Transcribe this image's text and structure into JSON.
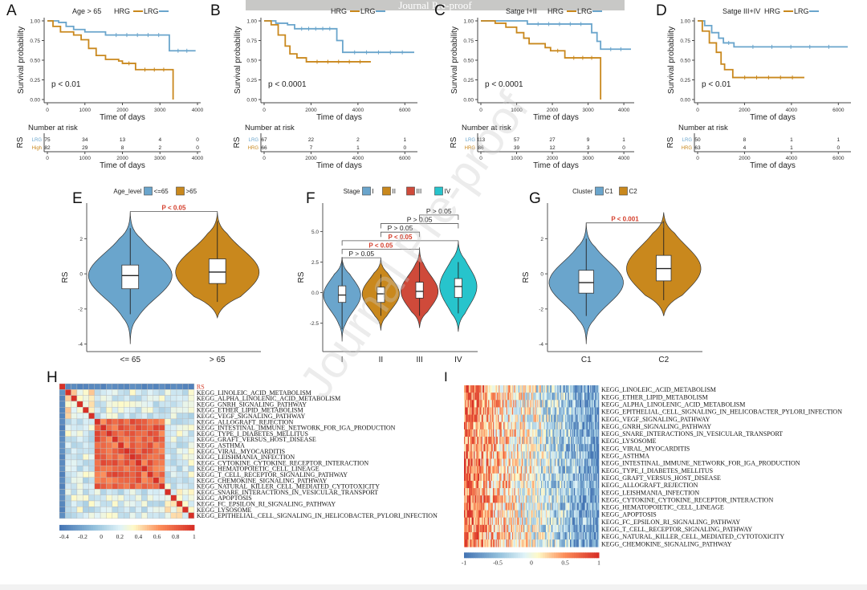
{
  "banner": "Journal Pre-proof",
  "watermark": "Journal Pre-proof",
  "colors": {
    "lrg": "#6aa5cc",
    "hrg": "#c9881d",
    "stage_I": "#6aa5cc",
    "stage_II": "#c9881d",
    "stage_III": "#cf4a3a",
    "stage_IV": "#27c4cc",
    "sig": "#d43d2a"
  },
  "chart_data": [
    {
      "id": "A",
      "type": "line",
      "subtype": "kaplan-meier",
      "legend_title": "Age > 65",
      "legend": [
        "HRG",
        "LRG"
      ],
      "ylabel": "Survival probability",
      "xlabel": "Time of days",
      "yticks": [
        "0.00",
        "0.25",
        "0.50",
        "0.75",
        "1.00"
      ],
      "ylim": [
        0,
        1
      ],
      "xticks": [
        "0",
        "1000",
        "2000",
        "3000",
        "4000"
      ],
      "xlim": [
        0,
        4000
      ],
      "pvalue": "p < 0.01",
      "series": [
        {
          "name": "LRG",
          "points": [
            [
              0,
              1
            ],
            [
              300,
              0.98
            ],
            [
              500,
              0.93
            ],
            [
              700,
              0.89
            ],
            [
              1000,
              0.86
            ],
            [
              1550,
              0.82
            ],
            [
              3250,
              0.82
            ],
            [
              3250,
              0.62
            ],
            [
              3950,
              0.62
            ]
          ]
        },
        {
          "name": "HRG",
          "points": [
            [
              0,
              1
            ],
            [
              150,
              0.93
            ],
            [
              350,
              0.86
            ],
            [
              700,
              0.82
            ],
            [
              900,
              0.76
            ],
            [
              1100,
              0.65
            ],
            [
              1300,
              0.56
            ],
            [
              1550,
              0.51
            ],
            [
              1900,
              0.49
            ],
            [
              2000,
              0.46
            ],
            [
              2350,
              0.46
            ],
            [
              2350,
              0.38
            ],
            [
              3350,
              0.38
            ],
            [
              3350,
              0.0
            ]
          ]
        }
      ],
      "risk_table": {
        "title": "Number at risk",
        "ylabel": "RS",
        "rows": [
          {
            "label": "LRG",
            "values": [
              "75",
              "34",
              "13",
              "4",
              "0"
            ]
          },
          {
            "label": "High",
            "values": [
              "82",
              "29",
              "8",
              "2",
              "0"
            ]
          }
        ],
        "xticks": [
          "0",
          "1000",
          "2000",
          "3000",
          "4000"
        ],
        "xlabel": "Time of days"
      }
    },
    {
      "id": "B",
      "type": "line",
      "subtype": "kaplan-meier",
      "legend_title": "",
      "legend": [
        "HRG",
        "LRG"
      ],
      "ylabel": "Survival probability",
      "xlabel": "Time of days",
      "yticks": [
        "0.00",
        "0.25",
        "0.50",
        "0.75",
        "1.00"
      ],
      "ylim": [
        0,
        1
      ],
      "xticks": [
        "0",
        "2000",
        "4000",
        "6000"
      ],
      "xlim": [
        0,
        6400
      ],
      "pvalue": "p < 0.0001",
      "series": [
        {
          "name": "LRG",
          "points": [
            [
              0,
              1
            ],
            [
              500,
              0.97
            ],
            [
              1000,
              0.95
            ],
            [
              1300,
              0.9
            ],
            [
              3100,
              0.9
            ],
            [
              3100,
              0.75
            ],
            [
              3350,
              0.75
            ],
            [
              3350,
              0.6
            ],
            [
              6400,
              0.6
            ]
          ]
        },
        {
          "name": "HRG",
          "points": [
            [
              0,
              1
            ],
            [
              300,
              0.95
            ],
            [
              600,
              0.82
            ],
            [
              900,
              0.68
            ],
            [
              1100,
              0.58
            ],
            [
              1400,
              0.53
            ],
            [
              1800,
              0.48
            ],
            [
              4550,
              0.48
            ]
          ]
        }
      ],
      "risk_table": {
        "title": "Number at risk",
        "ylabel": "RS",
        "rows": [
          {
            "label": "LRG",
            "values": [
              "67",
              "22",
              "2",
              "1"
            ]
          },
          {
            "label": "HRG",
            "values": [
              "66",
              "7",
              "1",
              "0"
            ]
          }
        ],
        "xticks": [
          "0",
          "2000",
          "4000",
          "6000"
        ],
        "xlabel": "Time of days"
      }
    },
    {
      "id": "C",
      "type": "line",
      "subtype": "kaplan-meier",
      "legend_title": "Satge I+II",
      "legend": [
        "HRG",
        "LRG"
      ],
      "ylabel": "Survival probability",
      "xlabel": "Time of days",
      "yticks": [
        "0.00",
        "0.25",
        "0.50",
        "0.75",
        "1.00"
      ],
      "ylim": [
        0,
        1
      ],
      "xticks": [
        "0",
        "1000",
        "2000",
        "3000",
        "4000"
      ],
      "xlim": [
        0,
        4200
      ],
      "pvalue": "p < 0.0001",
      "series": [
        {
          "name": "LRG",
          "points": [
            [
              0,
              1
            ],
            [
              1300,
              0.98
            ],
            [
              1300,
              0.96
            ],
            [
              3100,
              0.96
            ],
            [
              3100,
              0.85
            ],
            [
              3250,
              0.85
            ],
            [
              3250,
              0.74
            ],
            [
              3350,
              0.74
            ],
            [
              3350,
              0.64
            ],
            [
              4200,
              0.64
            ]
          ]
        },
        {
          "name": "HRG",
          "points": [
            [
              0,
              1
            ],
            [
              400,
              0.97
            ],
            [
              700,
              0.92
            ],
            [
              1000,
              0.85
            ],
            [
              1200,
              0.78
            ],
            [
              1350,
              0.71
            ],
            [
              1800,
              0.66
            ],
            [
              1950,
              0.62
            ],
            [
              2350,
              0.62
            ],
            [
              2350,
              0.53
            ],
            [
              3350,
              0.53
            ],
            [
              3350,
              0.0
            ]
          ]
        }
      ],
      "risk_table": {
        "title": "Number at risk",
        "ylabel": "RS",
        "rows": [
          {
            "label": "LRG",
            "values": [
              "113",
              "57",
              "27",
              "9",
              "1"
            ]
          },
          {
            "label": "HRG",
            "values": [
              "86",
              "39",
              "12",
              "3",
              "0"
            ]
          }
        ],
        "xticks": [
          "0",
          "1000",
          "2000",
          "3000",
          "4000"
        ],
        "xlabel": "Time of days"
      }
    },
    {
      "id": "D",
      "type": "line",
      "subtype": "kaplan-meier",
      "legend_title": "Satge III+IV",
      "legend": [
        "HRG",
        "LRG"
      ],
      "ylabel": "Survival probability",
      "xlabel": "Time of days",
      "yticks": [
        "0.00",
        "0.25",
        "0.50",
        "0.75",
        "1.00"
      ],
      "ylim": [
        0,
        1
      ],
      "xticks": [
        "0",
        "2000",
        "4000",
        "6000"
      ],
      "xlim": [
        0,
        6400
      ],
      "pvalue": "p < 0.01",
      "series": [
        {
          "name": "LRG",
          "points": [
            [
              0,
              1
            ],
            [
              300,
              0.94
            ],
            [
              600,
              0.85
            ],
            [
              900,
              0.78
            ],
            [
              1100,
              0.72
            ],
            [
              1550,
              0.72
            ],
            [
              1550,
              0.67
            ],
            [
              6400,
              0.67
            ]
          ]
        },
        {
          "name": "HRG",
          "points": [
            [
              0,
              1
            ],
            [
              200,
              0.87
            ],
            [
              500,
              0.72
            ],
            [
              800,
              0.6
            ],
            [
              1000,
              0.45
            ],
            [
              1150,
              0.38
            ],
            [
              1450,
              0.38
            ],
            [
              1500,
              0.28
            ],
            [
              4550,
              0.28
            ]
          ]
        }
      ],
      "risk_table": {
        "title": "Number at risk",
        "ylabel": "RS",
        "rows": [
          {
            "label": "LRG",
            "values": [
              "50",
              "8",
              "1",
              "1"
            ]
          },
          {
            "label": "HRG",
            "values": [
              "63",
              "4",
              "1",
              "0"
            ]
          }
        ],
        "xticks": [
          "0",
          "2000",
          "4000",
          "6000"
        ],
        "xlabel": "Time of days"
      }
    },
    {
      "id": "E",
      "type": "violin",
      "legend_title": "Age_level",
      "legend": [
        "<=65",
        ">65"
      ],
      "categories": [
        "<= 65",
        "> 65"
      ],
      "ylabel": "RS",
      "yticks": [
        "-4",
        "-2",
        "0",
        "2"
      ],
      "ylim": [
        -4.2,
        3.8
      ],
      "groups": [
        {
          "name": "<=65",
          "color_key": "lrg",
          "median": -0.1,
          "q1": -0.85,
          "q3": 0.5,
          "whisker_low": -2.3,
          "whisker_high": 2.6,
          "min": -4.0,
          "max": 3.5
        },
        {
          "name": ">65",
          "color_key": "hrg",
          "median": 0.1,
          "q1": -0.55,
          "q3": 0.85,
          "whisker_low": -1.6,
          "whisker_high": 3.0,
          "min": -2.5,
          "max": 3.5
        }
      ],
      "comparisons": [
        {
          "from": 0,
          "to": 1,
          "label": "P < 0.05",
          "significant": true,
          "y": 3.55
        }
      ]
    },
    {
      "id": "F",
      "type": "violin",
      "legend_title": "Stage",
      "legend": [
        "I",
        "II",
        "III",
        "IV"
      ],
      "categories": [
        "I",
        "II",
        "III",
        "IV"
      ],
      "ylabel": "RS",
      "yticks": [
        "-2.5",
        "0.0",
        "2.5",
        "5.0"
      ],
      "ylim": [
        -4.5,
        7
      ],
      "groups": [
        {
          "name": "I",
          "color_key": "stage_I",
          "median": -0.2,
          "q1": -0.8,
          "q3": 0.55,
          "whisker_low": -3.0,
          "whisker_high": 2.9,
          "min": -4.0,
          "max": 2.9
        },
        {
          "name": "II",
          "color_key": "stage_II",
          "median": -0.1,
          "q1": -0.8,
          "q3": 0.45,
          "whisker_low": -1.9,
          "whisker_high": 1.5,
          "min": -3.1,
          "max": 2.8
        },
        {
          "name": "III",
          "color_key": "stage_III",
          "median": 0.1,
          "q1": -0.45,
          "q3": 0.85,
          "whisker_low": -1.9,
          "whisker_high": 2.5,
          "min": -2.9,
          "max": 3.7
        },
        {
          "name": "IV",
          "color_key": "stage_IV",
          "median": 0.5,
          "q1": -0.4,
          "q3": 1.15,
          "whisker_low": -1.7,
          "whisker_high": 2.5,
          "min": -3.2,
          "max": 4.2
        }
      ],
      "comparisons": [
        {
          "from": 0,
          "to": 1,
          "label": "P > 0.05",
          "significant": false,
          "y": 2.85
        },
        {
          "from": 0,
          "to": 2,
          "label": "P < 0.05",
          "significant": true,
          "y": 3.55
        },
        {
          "from": 0,
          "to": 3,
          "label": "P < 0.05",
          "significant": true,
          "y": 4.25
        },
        {
          "from": 1,
          "to": 2,
          "label": "P > 0.05",
          "significant": false,
          "y": 4.95
        },
        {
          "from": 1,
          "to": 3,
          "label": "P > 0.05",
          "significant": false,
          "y": 5.65
        },
        {
          "from": 2,
          "to": 3,
          "label": "P > 0.05",
          "significant": false,
          "y": 6.35
        }
      ]
    },
    {
      "id": "G",
      "type": "violin",
      "legend_title": "Cluster",
      "legend": [
        "C1",
        "C2"
      ],
      "categories": [
        "C1",
        "C2"
      ],
      "ylabel": "RS",
      "yticks": [
        "-4",
        "-2",
        "0",
        "2"
      ],
      "ylim": [
        -4.2,
        3.8
      ],
      "groups": [
        {
          "name": "C1",
          "color_key": "lrg",
          "median": -0.5,
          "q1": -1.1,
          "q3": 0.2,
          "whisker_low": -2.4,
          "whisker_high": 2.0,
          "min": -4.0,
          "max": 2.9
        },
        {
          "name": "C2",
          "color_key": "hrg",
          "median": 0.3,
          "q1": -0.4,
          "q3": 1.05,
          "whisker_low": -1.5,
          "whisker_high": 3.0,
          "min": -2.4,
          "max": 3.5
        }
      ],
      "comparisons": [
        {
          "from": 0,
          "to": 1,
          "label": "P < 0.001",
          "significant": true,
          "y": 2.9
        }
      ]
    },
    {
      "id": "H",
      "type": "heatmap",
      "subtype": "correlation",
      "row_labels": [
        "RS",
        "KEGG_LINOLEIC_ACID_METABOLISM",
        "KEGG_ALPHA_LINOLENIC_ACID_METABOLISM",
        "KEGG_GNRH_SIGNALING_PATHWAY",
        "KEGG_ETHER_LIPID_METABOLISM",
        "KEGG_VEGF_SIGNALING_PATHWAY",
        "KEGG_ALLOGRAFT_REJECTION",
        "KEGG_INTESTINAL_IMMUNE_NETWORK_FOR_IGA_PRODUCTION",
        "KEGG_TYPE_I_DIABETES_MELLITUS",
        "KEGG_GRAFT_VERSUS_HOST_DISEASE",
        "KEGG_ASTHMA",
        "KEGG_VIRAL_MYOCARDITIS",
        "KEGG_LEISHMANIA_INFECTION",
        "KEGG_CYTOKINE_CYTOKINE_RECEPTOR_INTERACTION",
        "KEGG_HEMATOPOIETIC_CELL_LINEAGE",
        "KEGG_T_CELL_RECEPTOR_SIGNALING_PATHWAY",
        "KEGG_CHEMOKINE_SIGNALING_PATHWAY",
        "KEGG_NATURAL_KILLER_CELL_MEDIATED_CYTOTOXICITY",
        "KEGG_SNARE_INTERACTIONS_IN_VESICULAR_TRANSPORT",
        "KEGG_APOPTOSIS",
        "KEGG_FC_EPSILON_RI_SIGNALING_PATHWAY",
        "KEGG_LYSOSOME",
        "KEGG_EPITHELIAL_CELL_SIGNALING_IN_HELICOBACTER_PYLORI_INFECTION"
      ],
      "highlight_label": "RS",
      "colorbar_ticks": [
        "-0.4",
        "-0.2",
        "0",
        "0.2",
        "0.4",
        "0.6",
        "0.8",
        "1"
      ],
      "value_range": [
        -0.45,
        1
      ],
      "blocks": {
        "rs_corr": -0.35,
        "lipid_block": [
          1,
          5,
          0.35
        ],
        "immune_block": [
          6,
          17,
          0.78
        ],
        "tail_block": [
          18,
          22,
          0.3
        ],
        "cross": 0.18
      }
    },
    {
      "id": "I",
      "type": "heatmap",
      "subtype": "gsva-scores",
      "row_labels": [
        "KEGG_LINOLEIC_ACID_METABOLISM",
        "KEGG_ETHER_LIPID_METABOLISM",
        "KEGG_ALPHA_LINOLENIC_ACID_METABOLISM",
        "KEGG_EPITHELIAL_CELL_SIGNALING_IN_HELICOBACTER_PYLORI_INFECTION",
        "KEGG_VEGF_SIGNALING_PATHWAY",
        "KEGG_GNRH_SIGNALING_PATHWAY",
        "KEGG_SNARE_INTERACTIONS_IN_VESICULAR_TRANSPORT",
        "KEGG_LYSOSOME",
        "KEGG_VIRAL_MYOCARDITIS",
        "KEGG_ASTHMA",
        "KEGG_INTESTINAL_IMMUNE_NETWORK_FOR_IGA_PRODUCTION",
        "KEGG_TYPE_I_DIABETES_MELLITUS",
        "KEGG_GRAFT_VERSUS_HOST_DISEASE",
        "KEGG_ALLOGRAFT_REJECTION",
        "KEGG_LEISHMANIA_INFECTION",
        "KEGG_CYTOKINE_CYTOKINE_RECEPTOR_INTERACTION",
        "KEGG_HEMATOPOIETIC_CELL_LINEAGE",
        "KEGG_APOPTOSIS",
        "KEGG_FC_EPSILON_RI_SIGNALING_PATHWAY",
        "KEGG_T_CELL_RECEPTOR_SIGNALING_PATHWAY",
        "KEGG_NATURAL_KILLER_CELL_MEDIATED_CYTOTOXICITY",
        "KEGG_CHEMOKINE_SIGNALING_PATHWAY"
      ],
      "colorbar_ticks": [
        "-1",
        "-0.5",
        "0",
        "0.5",
        "1"
      ],
      "value_range": [
        -1,
        1
      ],
      "trend": "samples ordered high-to-low: left columns mostly positive (red), right columns mostly negative (blue)"
    }
  ]
}
